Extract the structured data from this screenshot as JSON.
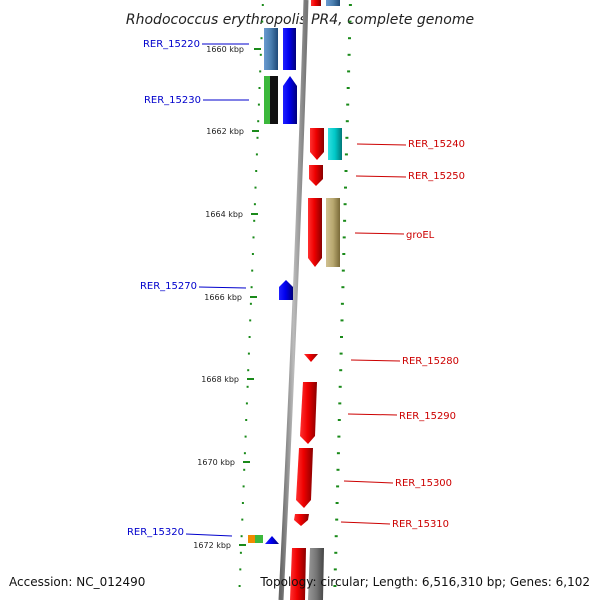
{
  "title": "Rhodococcus erythropolis PR4, complete genome",
  "footer": {
    "accession": "Accession: NC_012490",
    "topology": "Topology: circular; Length: 6,516,310 bp; Genes: 6,102"
  },
  "ticks": [
    "1660 kbp",
    "1662 kbp",
    "1664 kbp",
    "1666 kbp",
    "1668 kbp",
    "1670 kbp",
    "1672 kbp"
  ],
  "genes": {
    "reverse": [
      "RER_15220",
      "RER_15230",
      "RER_15270",
      "RER_15320"
    ],
    "forward": [
      "RER_15240",
      "RER_15250",
      "groEL",
      "RER_15280",
      "RER_15290",
      "RER_15300",
      "RER_15310"
    ]
  },
  "colors": {
    "reverse_strand": "#0000ee",
    "forward_strand": "#ee0000",
    "label_reverse": "#0000cc",
    "label_forward": "#cc0000",
    "backbone": "#888888",
    "tick_marks": "#1a8a1a",
    "cog_steelblue": "#4a7fb0",
    "cog_green": "#3cb83c",
    "cog_cyan": "#00c8c8",
    "cog_khaki": "#b8a870",
    "cog_gray": "#777777"
  }
}
